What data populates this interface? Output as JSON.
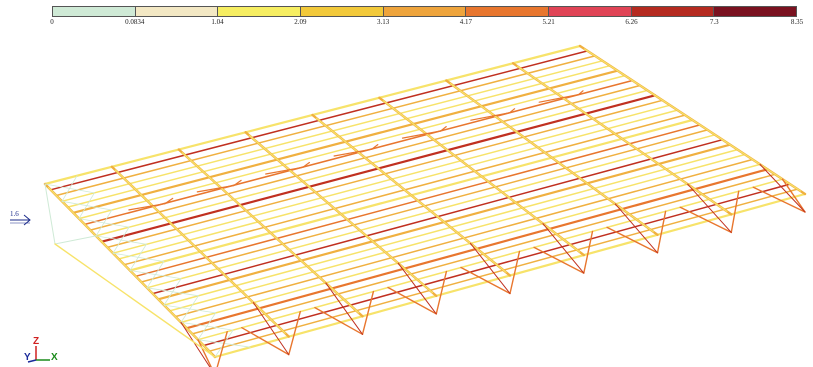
{
  "legend": {
    "ticks": [
      "0",
      "0.0834",
      "1.04",
      "2.09",
      "3.13",
      "4.17",
      "5.21",
      "6.26",
      "7.3",
      "8.35"
    ],
    "colors": [
      "#cfead6",
      "#f3e8c4",
      "#f6ee62",
      "#f2c93a",
      "#eea43c",
      "#e8762e",
      "#e04456",
      "#b52a20",
      "#7a1220"
    ]
  },
  "scale_indicator": {
    "label": "1.6"
  },
  "axes": {
    "x": "X",
    "y": "Y",
    "z": "Z"
  },
  "colors": {
    "light": "#f7e36a",
    "mid": "#f0b040",
    "orange": "#e8762e",
    "red": "#c03020",
    "pale": "#cfead6"
  }
}
